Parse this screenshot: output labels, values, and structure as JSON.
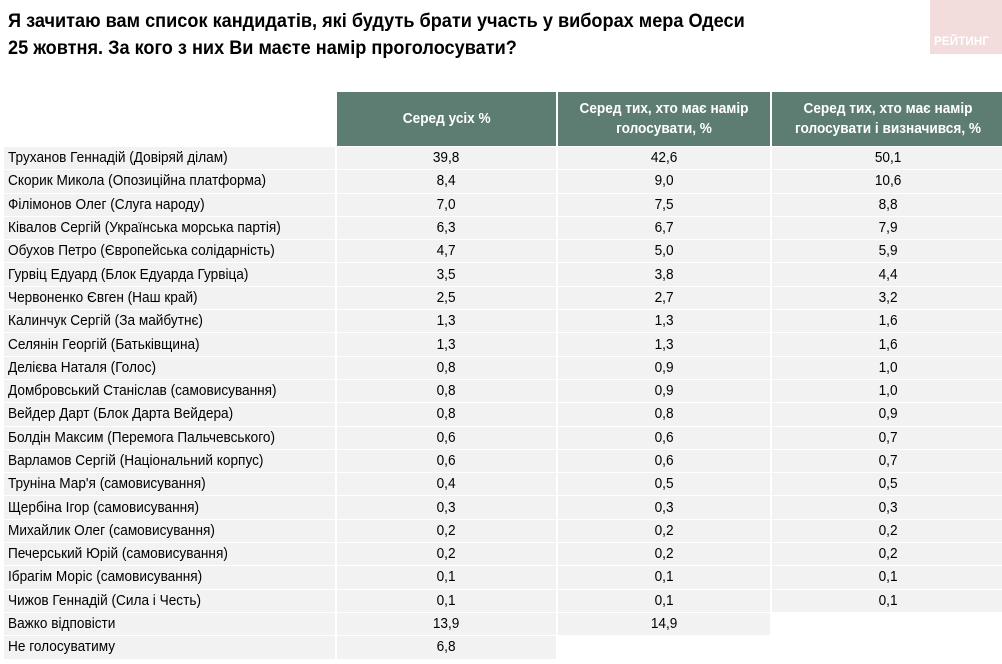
{
  "title": {
    "line1": "Я зачитаю вам список кандидатів, які будуть брати участь у виборах мера Одеси",
    "line2": "25 жовтня. За кого з них Ви маєте намір проголосувати?"
  },
  "logo": {
    "text": "РЕЙТИНГ",
    "bg_color": "#f2dcdc"
  },
  "colors": {
    "header_bg": "#5e7d72",
    "header_text": "#ffffff",
    "cell_bg": "#f2f2f2"
  },
  "table": {
    "headers": [
      "",
      "Серед усіх %",
      "Серед тих, хто має намір голосувати, %",
      "Серед тих, хто має намір голосувати і визначився, %"
    ],
    "rows": [
      {
        "name": "Труханов Геннадій (Довіряй ділам)",
        "all": "39,8",
        "voting": "42,6",
        "decided": "50,1"
      },
      {
        "name": "Скорик Микола (Опозиційна платформа)",
        "all": "8,4",
        "voting": "9,0",
        "decided": "10,6"
      },
      {
        "name": "Філімонов Олег (Слуга народу)",
        "all": "7,0",
        "voting": "7,5",
        "decided": "8,8"
      },
      {
        "name": "Ківалов Сергій (Українська морська партія)",
        "all": "6,3",
        "voting": "6,7",
        "decided": "7,9"
      },
      {
        "name": "Обухов Петро (Європейська солідарність)",
        "all": "4,7",
        "voting": "5,0",
        "decided": "5,9"
      },
      {
        "name": "Гурвіц Едуард (Блок Едуарда Гурвіца)",
        "all": "3,5",
        "voting": "3,8",
        "decided": "4,4"
      },
      {
        "name": "Червоненко Євген (Наш край)",
        "all": "2,5",
        "voting": "2,7",
        "decided": "3,2"
      },
      {
        "name": "Калинчук Сергій (За майбутнє)",
        "all": "1,3",
        "voting": "1,3",
        "decided": "1,6"
      },
      {
        "name": "Селянін Георгій (Батьківщина)",
        "all": "1,3",
        "voting": "1,3",
        "decided": "1,6"
      },
      {
        "name": "Делієва Наталя (Голос)",
        "all": "0,8",
        "voting": "0,9",
        "decided": "1,0"
      },
      {
        "name": "Домбровський Станіслав (самовисування)",
        "all": "0,8",
        "voting": "0,9",
        "decided": "1,0"
      },
      {
        "name": "Вейдер Дарт (Блок Дарта Вейдера)",
        "all": "0,8",
        "voting": "0,8",
        "decided": "0,9"
      },
      {
        "name": "Болдін Максим (Перемога Пальчевського)",
        "all": "0,6",
        "voting": "0,6",
        "decided": "0,7"
      },
      {
        "name": "Варламов Сергій (Національний корпус)",
        "all": "0,6",
        "voting": "0,6",
        "decided": "0,7"
      },
      {
        "name": "Труніна Мар'я (самовисування)",
        "all": "0,4",
        "voting": "0,5",
        "decided": "0,5"
      },
      {
        "name": "Щербіна Ігор (самовисування)",
        "all": "0,3",
        "voting": "0,3",
        "decided": "0,3"
      },
      {
        "name": "Михайлик Олег (самовисування)",
        "all": "0,2",
        "voting": "0,2",
        "decided": "0,2"
      },
      {
        "name": "Печерський Юрій (самовисування)",
        "all": "0,2",
        "voting": "0,2",
        "decided": "0,2"
      },
      {
        "name": "Ібрагім Моріс (самовисування)",
        "all": "0,1",
        "voting": "0,1",
        "decided": "0,1"
      },
      {
        "name": "Чижов Геннадій (Сила і Честь)",
        "all": "0,1",
        "voting": "0,1",
        "decided": "0,1"
      },
      {
        "name": "Важко відповісти",
        "all": "13,9",
        "voting": "14,9",
        "decided": null
      },
      {
        "name": "Не голосуватиму",
        "all": "6,8",
        "voting": null,
        "decided": null
      }
    ]
  }
}
